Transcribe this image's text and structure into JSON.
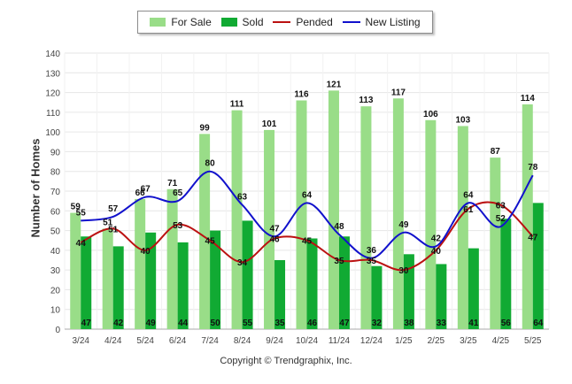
{
  "chart_data": {
    "type": "bar",
    "title": "",
    "xlabel": "",
    "ylabel": "Number of Homes",
    "ylim": [
      0,
      140
    ],
    "ytick_step": 10,
    "grid": true,
    "legend_position": "top",
    "categories": [
      "3/24",
      "4/24",
      "5/24",
      "6/24",
      "7/24",
      "8/24",
      "9/24",
      "10/24",
      "11/24",
      "12/24",
      "1/25",
      "2/25",
      "3/25",
      "4/25",
      "5/25"
    ],
    "series": [
      {
        "name": "For Sale",
        "kind": "bar",
        "color": "#99dd88",
        "values": [
          59,
          51,
          66,
          71,
          99,
          111,
          101,
          116,
          121,
          113,
          117,
          106,
          103,
          87,
          114
        ]
      },
      {
        "name": "Sold",
        "kind": "bar",
        "color": "#11aa33",
        "values": [
          47,
          42,
          49,
          44,
          50,
          55,
          35,
          46,
          47,
          32,
          38,
          33,
          41,
          56,
          64
        ]
      },
      {
        "name": "Pended",
        "kind": "line",
        "color": "#bb1111",
        "values": [
          44,
          51,
          40,
          53,
          45,
          34,
          46,
          45,
          35,
          35,
          30,
          40,
          61,
          63,
          47
        ]
      },
      {
        "name": "New Listing",
        "kind": "line",
        "color": "#1111cc",
        "values": [
          55,
          57,
          67,
          65,
          80,
          63,
          47,
          64,
          48,
          36,
          49,
          42,
          64,
          52,
          78
        ]
      }
    ]
  },
  "copyright": "Copyright © Trendgraphix, Inc."
}
